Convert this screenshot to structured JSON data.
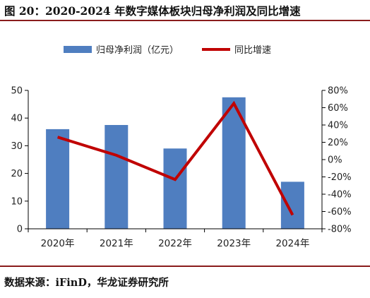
{
  "figure": {
    "title": "图 20：2020-2024 年数字媒体板块归母净利润及同比增速",
    "source": "数据来源：iFinD，华龙证券研究所"
  },
  "colors": {
    "bar": "#4f7ec0",
    "line": "#c00000",
    "axis": "#000000"
  },
  "chart_data": {
    "type": "bar+line",
    "categories": [
      "2020年",
      "2021年",
      "2022年",
      "2023年",
      "2024年"
    ],
    "series": [
      {
        "name": "归母净利润（亿元）",
        "type": "bar",
        "axis": "left",
        "values": [
          36.0,
          37.5,
          29.0,
          47.5,
          17.0
        ]
      },
      {
        "name": "同比增速",
        "type": "line",
        "axis": "right",
        "values": [
          26,
          5,
          -23,
          65,
          -64
        ]
      }
    ],
    "left_axis": {
      "min": 0,
      "max": 50,
      "ticks": [
        0,
        10,
        20,
        30,
        40,
        50
      ]
    },
    "right_axis": {
      "min": -80,
      "max": 80,
      "ticks": [
        -80,
        -60,
        -40,
        -20,
        0,
        20,
        40,
        60,
        80
      ],
      "tick_labels": [
        "-80%",
        "-60%",
        "-40%",
        "-20%",
        "0%",
        "20%",
        "40%",
        "60%",
        "80%"
      ]
    },
    "legend_position": "top",
    "grid": false
  }
}
